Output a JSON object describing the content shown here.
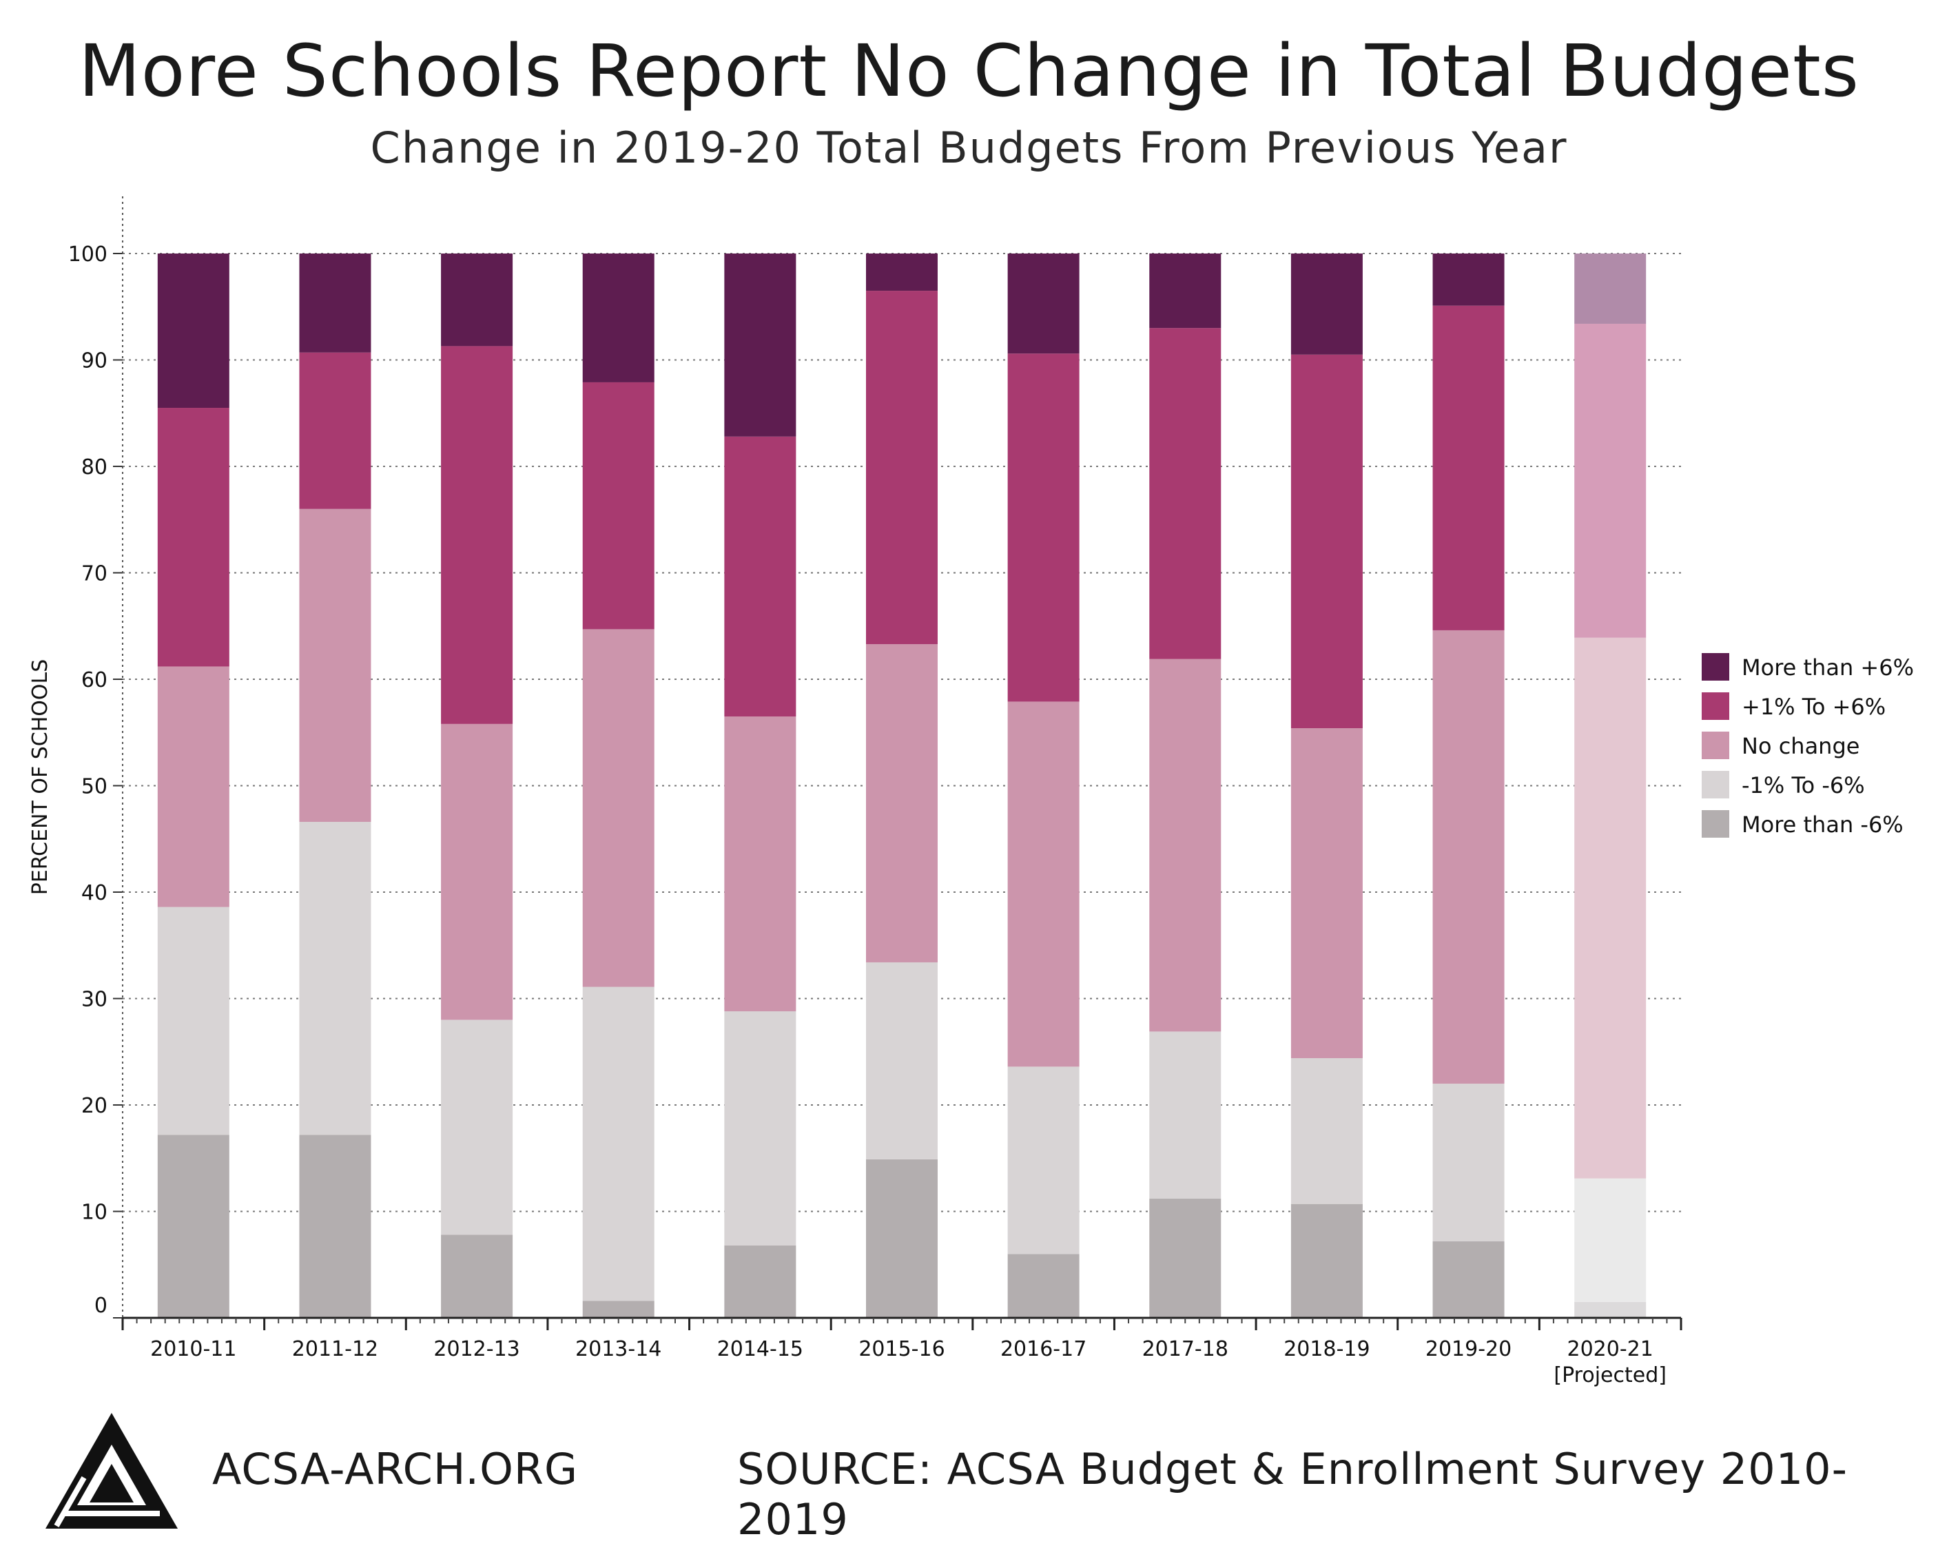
{
  "title": "More Schools Report No Change in Total Budgets",
  "subtitle": "Change in 2019-20 Total Budgets From Previous Year",
  "footer": {
    "site": "ACSA-ARCH.ORG",
    "source": "SOURCE: ACSA Budget & Enrollment Survey 2010-2019"
  },
  "logo_icon": "acsa-triangle-logo-icon",
  "chart_data": {
    "type": "bar",
    "stacked": true,
    "ylabel": "PERCENT OF SCHOOLS",
    "xlabel": "",
    "ylim": [
      0,
      100
    ],
    "yticks": [
      0,
      10,
      20,
      30,
      40,
      50,
      60,
      70,
      80,
      90,
      100
    ],
    "grid": "horizontal-dotted",
    "legend_position": "right",
    "categories": [
      "2010-11",
      "2011-12",
      "2012-13",
      "2013-14",
      "2014-15",
      "2015-16",
      "2016-17",
      "2017-18",
      "2018-19",
      "2019-20",
      "2020-21"
    ],
    "category_notes": [
      "",
      "",
      "",
      "",
      "",
      "",
      "",
      "",
      "",
      "",
      "[Projected]"
    ],
    "series": [
      {
        "name": "More than -6%",
        "color": "#b3aeaf",
        "values": [
          17.2,
          17.2,
          7.8,
          1.6,
          6.8,
          14.9,
          6.0,
          11.2,
          10.7,
          7.2,
          1.5
        ]
      },
      {
        "name": "-1% To -6%",
        "color": "#d8d4d5",
        "values": [
          21.4,
          29.4,
          20.2,
          29.5,
          22.0,
          18.5,
          17.6,
          15.7,
          13.7,
          14.8,
          11.6
        ]
      },
      {
        "name": "No change",
        "color": "#cc95ac",
        "values": [
          22.6,
          29.4,
          27.8,
          33.6,
          27.7,
          29.9,
          34.3,
          35.0,
          31.0,
          42.6,
          50.8
        ]
      },
      {
        "name": "+1% To +6%",
        "color": "#a83a70",
        "values": [
          24.3,
          14.7,
          35.5,
          23.2,
          26.3,
          33.2,
          32.7,
          31.1,
          35.1,
          30.5,
          29.5
        ]
      },
      {
        "name": "More than +6%",
        "color": "#5e1d50",
        "values": [
          14.5,
          9.3,
          8.7,
          12.1,
          17.2,
          3.5,
          9.4,
          7.0,
          9.5,
          4.9,
          6.6
        ]
      }
    ],
    "projected_colors": [
      "#dcdadb",
      "#eaeaea",
      "#e4c7d1",
      "#d69db9",
      "#b08ba9"
    ]
  }
}
